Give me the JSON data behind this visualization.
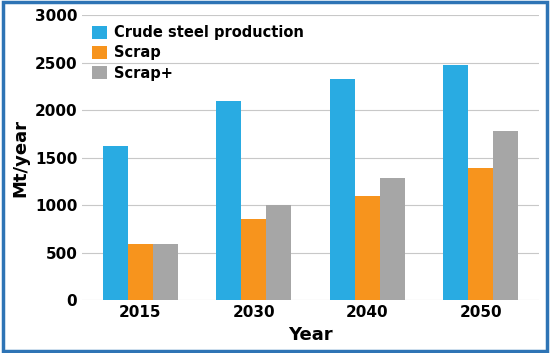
{
  "years": [
    2015,
    2030,
    2040,
    2050
  ],
  "crude_steel": [
    1620,
    2100,
    2330,
    2480
  ],
  "scrap": [
    590,
    860,
    1100,
    1390
  ],
  "scrap_plus": [
    590,
    1000,
    1290,
    1780
  ],
  "colors": {
    "crude_steel": "#29ABE2",
    "scrap": "#F7941D",
    "scrap_plus": "#A6A6A6"
  },
  "legend_labels": [
    "Crude steel production",
    "Scrap",
    "Scrap+"
  ],
  "xlabel": "Year",
  "ylabel": "Mt/year",
  "ylim": [
    0,
    3000
  ],
  "yticks": [
    0,
    500,
    1000,
    1500,
    2000,
    2500,
    3000
  ],
  "bar_width": 0.22,
  "figsize": [
    5.5,
    3.53
  ],
  "dpi": 100,
  "background_color": "#ffffff",
  "border_color": "#2E74B5"
}
